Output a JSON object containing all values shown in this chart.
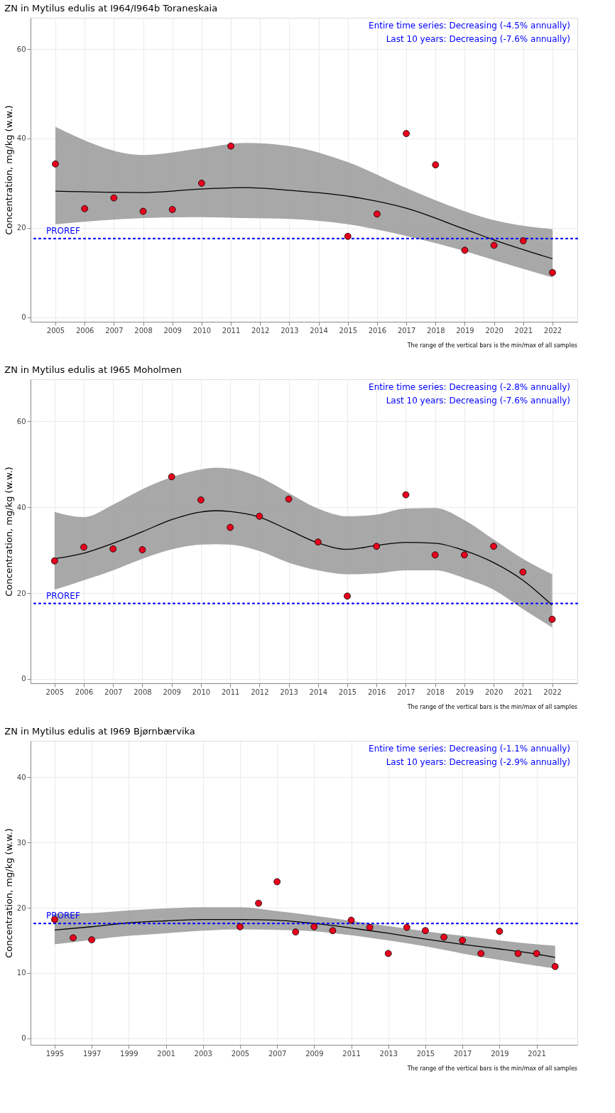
{
  "chart_data": [
    {
      "type": "scatter",
      "title": "ZN in Mytilus edulis at I964/I964b Toraneskaia",
      "ylabel": "Concentration, mg/kg (w.w.)",
      "xlim": [
        2004.15,
        2022.85
      ],
      "xticks": [
        2005,
        2006,
        2007,
        2008,
        2009,
        2010,
        2011,
        2012,
        2013,
        2014,
        2015,
        2016,
        2017,
        2018,
        2019,
        2020,
        2021,
        2022
      ],
      "ylim": [
        -1,
        67
      ],
      "yticks": [
        0,
        20,
        40,
        60
      ],
      "grid": true,
      "ref_lines": [
        {
          "axis": "y",
          "value": 17.6,
          "label": "PROREF",
          "color": "#0000ff",
          "line_style": "dotted"
        }
      ],
      "annotations": [
        "Entire time series: Decreasing (-4.5% annually)",
        "Last 10 years: Decreasing (-7.6% annually)",
        "The range of the vertical bars is the min/max of all samples"
      ],
      "series": [
        {
          "type": "line",
          "color": "#000000",
          "line_style": "solid",
          "x": [
            2005,
            2008,
            2010,
            2011.5,
            2013,
            2015,
            2017,
            2019,
            2020,
            2022
          ],
          "values": [
            28.2,
            27.9,
            28.7,
            29.0,
            28.4,
            27.1,
            24.4,
            19.7,
            17.3,
            13.1
          ],
          "lower": [
            20.8,
            22.2,
            22.4,
            22.2,
            22.0,
            20.8,
            18.2,
            14.8,
            12.8,
            8.9
          ],
          "upper": [
            42.6,
            36.3,
            37.8,
            39.0,
            38.3,
            34.7,
            28.9,
            23.7,
            21.7,
            19.7
          ]
        },
        {
          "marker": "circle",
          "color": "#e8001c",
          "x": [
            2005,
            2006,
            2007,
            2008,
            2009,
            2010,
            2011,
            2015,
            2016,
            2017,
            2018,
            2019,
            2020,
            2021,
            2022
          ],
          "values": [
            34.3,
            24.3,
            26.7,
            23.7,
            24.1,
            30.0,
            38.3,
            18.1,
            23.1,
            41.1,
            34.1,
            15.0,
            16.1,
            17.1,
            10.0
          ]
        }
      ]
    },
    {
      "type": "scatter",
      "title": "ZN in Mytilus edulis at I965 Moholmen",
      "ylabel": "Concentration, mg/kg (w.w.)",
      "xlim": [
        2004.18,
        2022.86
      ],
      "xticks": [
        2005,
        2006,
        2007,
        2008,
        2009,
        2010,
        2011,
        2012,
        2013,
        2014,
        2015,
        2016,
        2017,
        2018,
        2019,
        2020,
        2021,
        2022
      ],
      "ylim": [
        -1,
        69.8
      ],
      "yticks": [
        0,
        20,
        40,
        60
      ],
      "grid": true,
      "ref_lines": [
        {
          "axis": "y",
          "value": 17.6,
          "label": "PROREF",
          "color": "#0000ff",
          "line_style": "dotted"
        }
      ],
      "annotations": [
        "Entire time series: Decreasing (-2.8% annually)",
        "Last 10 years: Decreasing (-7.6% annually)",
        "The range of the vertical bars is the min/max of all samples"
      ],
      "series": [
        {
          "type": "line",
          "color": "#000000",
          "line_style": "solid",
          "x": [
            2005,
            2006,
            2007,
            2008,
            2009,
            2010,
            2010.5,
            2011,
            2012,
            2013,
            2014,
            2015,
            2016,
            2017,
            2018,
            2019,
            2020,
            2021,
            2022
          ],
          "values": [
            28.0,
            29.3,
            31.6,
            34.3,
            37.1,
            38.9,
            39.2,
            39.0,
            37.7,
            34.7,
            31.7,
            30.2,
            31.1,
            31.8,
            31.6,
            29.9,
            27.1,
            23.0,
            17.2
          ],
          "lower": [
            20.8,
            23.0,
            25.3,
            28.0,
            30.2,
            31.3,
            31.4,
            31.3,
            29.8,
            27.1,
            25.3,
            24.4,
            24.6,
            25.3,
            25.3,
            23.5,
            20.8,
            16.3,
            12.0
          ],
          "upper": [
            38.9,
            37.7,
            40.6,
            44.2,
            47.0,
            48.8,
            49.2,
            49.0,
            47.0,
            43.3,
            39.7,
            37.9,
            38.3,
            39.7,
            39.8,
            37.0,
            32.5,
            28.0,
            24.4
          ]
        },
        {
          "marker": "circle",
          "color": "#e8001c",
          "x": [
            2005,
            2006,
            2007,
            2008,
            2009,
            2010,
            2011,
            2012,
            2013,
            2014,
            2015,
            2016,
            2017,
            2018,
            2019,
            2020,
            2021,
            2022
          ],
          "values": [
            27.5,
            30.7,
            30.3,
            30.1,
            47.1,
            41.7,
            35.3,
            37.9,
            41.9,
            31.9,
            19.3,
            30.9,
            42.9,
            28.9,
            28.9,
            30.9,
            24.9,
            13.9
          ]
        }
      ]
    },
    {
      "type": "scatter",
      "title": "ZN in Mytilus edulis at I969 Bjørnbærvika",
      "ylabel": "Concentration, mg/kg (w.w.)",
      "xlim": [
        1993.7,
        2023.2
      ],
      "xticks": [
        1995,
        1997,
        1999,
        2001,
        2003,
        2005,
        2007,
        2009,
        2011,
        2013,
        2015,
        2017,
        2019,
        2021
      ],
      "ylim": [
        -1,
        45.6
      ],
      "yticks": [
        0,
        10,
        20,
        30,
        40
      ],
      "grid": true,
      "ref_lines": [
        {
          "axis": "y",
          "value": 17.6,
          "label": "PROREF",
          "color": "#0000ff",
          "line_style": "dotted"
        }
      ],
      "annotations": [
        "Entire time series: Decreasing (-1.1% annually)",
        "Last 10 years: Decreasing (-2.9% annually)",
        "The range of the vertical bars is the min/max of all samples"
      ],
      "series": [
        {
          "type": "line",
          "color": "#000000",
          "line_style": "solid",
          "x": [
            1995,
            1997,
            1999,
            2001,
            2003,
            2005,
            2007,
            2009,
            2011,
            2013,
            2015,
            2017,
            2019,
            2021,
            2022
          ],
          "values": [
            16.6,
            17.1,
            17.7,
            18.0,
            18.2,
            18.2,
            18.1,
            17.6,
            16.9,
            16.1,
            15.2,
            14.4,
            13.7,
            12.9,
            12.4
          ],
          "lower": [
            14.4,
            15.1,
            15.7,
            16.1,
            16.5,
            16.7,
            16.6,
            16.4,
            15.8,
            15.0,
            14.1,
            13.0,
            12.0,
            11.1,
            10.7
          ],
          "upper": [
            19.1,
            19.2,
            19.6,
            19.9,
            20.1,
            20.1,
            19.5,
            18.8,
            18.0,
            17.2,
            16.4,
            15.7,
            15.0,
            14.4,
            14.2
          ]
        },
        {
          "marker": "circle",
          "color": "#e8001c",
          "x": [
            1995,
            1996,
            1997,
            2005,
            2006,
            2007,
            2008,
            2009,
            2010,
            2011,
            2012,
            2013,
            2014,
            2015,
            2016,
            2017,
            2018,
            2019,
            2020,
            2021,
            2022
          ],
          "values": [
            18.2,
            15.4,
            15.1,
            17.1,
            20.7,
            24.0,
            16.3,
            17.1,
            16.5,
            18.1,
            17.0,
            13.0,
            17.0,
            16.5,
            15.5,
            15.0,
            13.0,
            16.4,
            13.0,
            13.0,
            11.0
          ]
        }
      ]
    }
  ]
}
